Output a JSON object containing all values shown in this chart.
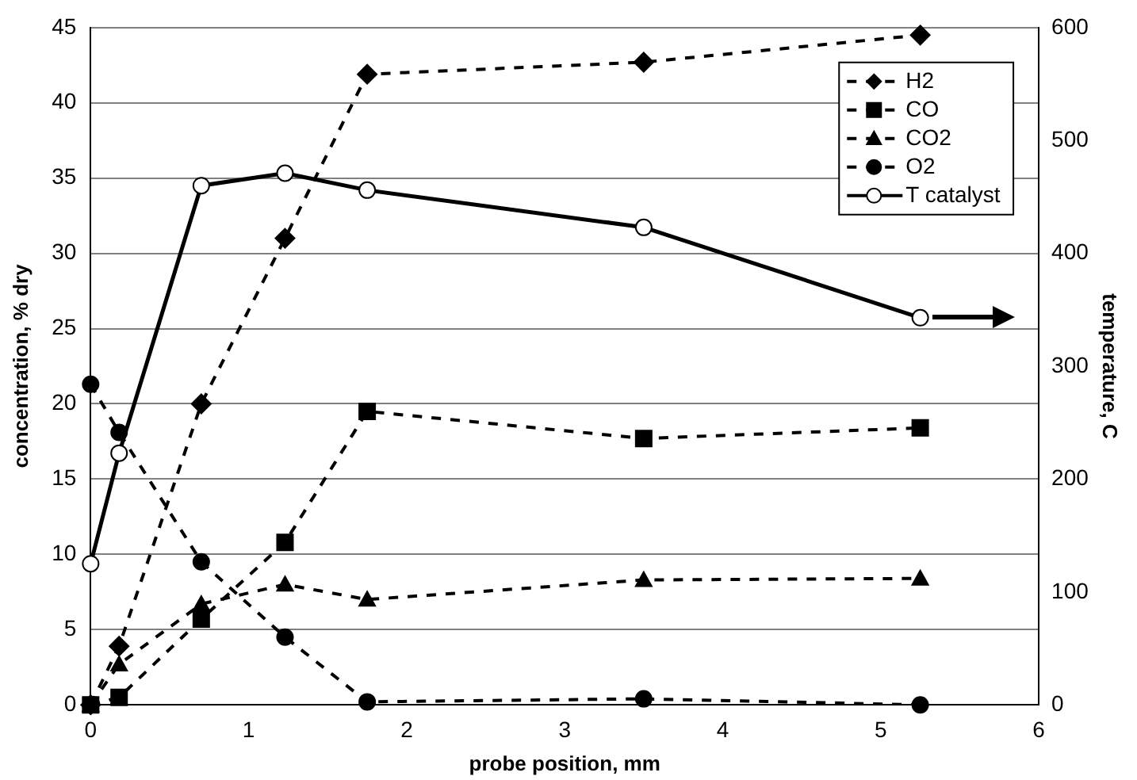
{
  "chart_data": {
    "type": "line",
    "xlabel": "probe position, mm",
    "ylabel": "concentration, % dry",
    "y2label": "temperature, C",
    "xlim": [
      0,
      6
    ],
    "xticks": [
      0,
      1,
      2,
      3,
      4,
      5,
      6
    ],
    "ylim": [
      0,
      45
    ],
    "yticks": [
      0,
      5,
      10,
      15,
      20,
      25,
      30,
      35,
      40,
      45
    ],
    "y2lim": [
      0,
      600
    ],
    "y2ticks": [
      0,
      100,
      200,
      300,
      400,
      500,
      600
    ],
    "grid": "y",
    "legend": "top right",
    "series": [
      {
        "name": "H2",
        "color": "#000000",
        "marker": "diamond",
        "line_style": "dashed",
        "x": [
          0,
          0.18,
          0.7,
          1.23,
          1.75,
          3.5,
          5.25
        ],
        "values": [
          0,
          3.9,
          20.0,
          31.0,
          41.9,
          42.7,
          44.5
        ]
      },
      {
        "name": "CO",
        "color": "#000000",
        "marker": "square",
        "line_style": "dashed",
        "x": [
          0,
          0.18,
          0.7,
          1.23,
          1.75,
          3.5,
          5.25
        ],
        "values": [
          0,
          0.5,
          5.7,
          10.8,
          19.5,
          17.7,
          18.4
        ]
      },
      {
        "name": "CO2",
        "color": "#000000",
        "marker": "triangle",
        "line_style": "dashed",
        "x": [
          0,
          0.18,
          0.7,
          1.23,
          1.75,
          3.5,
          5.25
        ],
        "values": [
          0,
          2.7,
          6.7,
          8.0,
          7.0,
          8.3,
          8.4
        ]
      },
      {
        "name": "O2",
        "color": "#000000",
        "marker": "circle",
        "line_style": "dashed",
        "x": [
          0,
          0.18,
          0.7,
          1.23,
          1.75,
          3.5,
          5.25
        ],
        "values": [
          21.3,
          18.1,
          9.5,
          4.5,
          0.2,
          0.4,
          0
        ]
      },
      {
        "name": "T catalyst",
        "color": "#000000",
        "marker": "circle",
        "line_style": "solid",
        "axis": "y2",
        "x": [
          0,
          0.18,
          0.7,
          1.23,
          1.75,
          3.5,
          5.25
        ],
        "values": [
          125,
          223,
          460,
          471,
          456,
          423,
          343
        ]
      }
    ]
  }
}
